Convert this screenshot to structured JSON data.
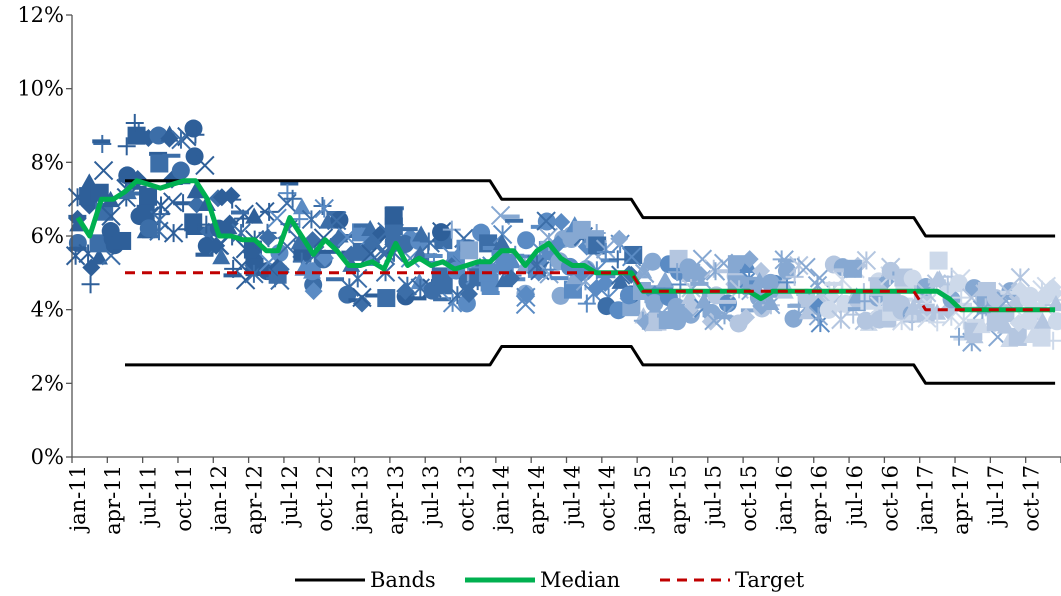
{
  "chart_data": {
    "type": "scatter",
    "title": "",
    "xlabel": "",
    "ylabel": "",
    "ylim": [
      0,
      12
    ],
    "y_ticks": [
      "0%",
      "2%",
      "4%",
      "6%",
      "8%",
      "10%",
      "12%"
    ],
    "x_ticks": [
      "jan-11",
      "apr-11",
      "jul-11",
      "oct-11",
      "jan-12",
      "apr-12",
      "jul-12",
      "oct-12",
      "jan-13",
      "apr-13",
      "jul-13",
      "oct-13",
      "jan-14",
      "apr-14",
      "jul-14",
      "oct-14",
      "jan-15",
      "apr-15",
      "jul-15",
      "oct-15",
      "jan-16",
      "apr-16",
      "jul-16",
      "oct-16",
      "jan-17",
      "apr-17",
      "jul-17",
      "oct-17"
    ],
    "months": [
      "2011-01",
      "2011-02",
      "2011-03",
      "2011-04",
      "2011-05",
      "2011-06",
      "2011-07",
      "2011-08",
      "2011-09",
      "2011-10",
      "2011-11",
      "2011-12",
      "2012-01",
      "2012-02",
      "2012-03",
      "2012-04",
      "2012-05",
      "2012-06",
      "2012-07",
      "2012-08",
      "2012-09",
      "2012-10",
      "2012-11",
      "2012-12",
      "2013-01",
      "2013-02",
      "2013-03",
      "2013-04",
      "2013-05",
      "2013-06",
      "2013-07",
      "2013-08",
      "2013-09",
      "2013-10",
      "2013-11",
      "2013-12",
      "2014-01",
      "2014-02",
      "2014-03",
      "2014-04",
      "2014-05",
      "2014-06",
      "2014-07",
      "2014-08",
      "2014-09",
      "2014-10",
      "2014-11",
      "2014-12",
      "2015-01",
      "2015-02",
      "2015-03",
      "2015-04",
      "2015-05",
      "2015-06",
      "2015-07",
      "2015-08",
      "2015-09",
      "2015-10",
      "2015-11",
      "2015-12",
      "2016-01",
      "2016-02",
      "2016-03",
      "2016-04",
      "2016-05",
      "2016-06",
      "2016-07",
      "2016-08",
      "2016-09",
      "2016-10",
      "2016-11",
      "2016-12",
      "2017-01",
      "2017-02",
      "2017-03",
      "2017-04",
      "2017-05",
      "2017-06",
      "2017-07",
      "2017-08",
      "2017-09",
      "2017-10",
      "2017-11",
      "2017-12"
    ],
    "series": [
      {
        "name": "Bands",
        "color": "#000000",
        "style": "solid",
        "segments": [
          {
            "values": [
              null,
              null,
              null,
              null,
              7.5,
              7.5,
              7.5,
              7.5,
              7.5,
              7.5,
              7.5,
              7.5,
              7.5,
              7.5,
              7.5,
              7.5,
              7.5,
              7.5,
              7.5,
              7.5,
              7.5,
              7.5,
              7.5,
              7.5,
              7.5,
              7.5,
              7.5,
              7.5,
              7.5,
              7.5,
              7.5,
              7.5,
              7.5,
              7.5,
              7.5,
              7.5,
              7,
              7,
              7,
              7,
              7,
              7,
              7,
              7,
              7,
              7,
              7,
              7,
              6.5,
              6.5,
              6.5,
              6.5,
              6.5,
              6.5,
              6.5,
              6.5,
              6.5,
              6.5,
              6.5,
              6.5,
              6.5,
              6.5,
              6.5,
              6.5,
              6.5,
              6.5,
              6.5,
              6.5,
              6.5,
              6.5,
              6.5,
              6.5,
              6,
              6,
              6,
              6,
              6,
              6,
              6,
              6,
              6,
              6,
              6,
              6
            ]
          },
          {
            "values": [
              null,
              null,
              null,
              null,
              2.5,
              2.5,
              2.5,
              2.5,
              2.5,
              2.5,
              2.5,
              2.5,
              2.5,
              2.5,
              2.5,
              2.5,
              2.5,
              2.5,
              2.5,
              2.5,
              2.5,
              2.5,
              2.5,
              2.5,
              2.5,
              2.5,
              2.5,
              2.5,
              2.5,
              2.5,
              2.5,
              2.5,
              2.5,
              2.5,
              2.5,
              2.5,
              3,
              3,
              3,
              3,
              3,
              3,
              3,
              3,
              3,
              3,
              3,
              3,
              2.5,
              2.5,
              2.5,
              2.5,
              2.5,
              2.5,
              2.5,
              2.5,
              2.5,
              2.5,
              2.5,
              2.5,
              2.5,
              2.5,
              2.5,
              2.5,
              2.5,
              2.5,
              2.5,
              2.5,
              2.5,
              2.5,
              2.5,
              2.5,
              2,
              2,
              2,
              2,
              2,
              2,
              2,
              2,
              2,
              2,
              2,
              2
            ]
          }
        ]
      },
      {
        "name": "Median",
        "color": "#00b050",
        "style": "solid",
        "values": [
          6.5,
          6,
          7,
          7,
          7.2,
          7.5,
          7.4,
          7.3,
          7.4,
          7.5,
          7.5,
          7,
          6,
          6,
          5.9,
          5.9,
          5.6,
          5.6,
          6.5,
          6,
          5.5,
          5.9,
          5.6,
          5.2,
          5.2,
          5.3,
          5.1,
          5.8,
          5.2,
          5.4,
          5.2,
          5.3,
          5.1,
          5.2,
          5.3,
          5.3,
          5.6,
          5.6,
          5.2,
          5.6,
          5.8,
          5.4,
          5.2,
          5.2,
          5,
          5,
          5,
          5,
          4.5,
          4.5,
          4.5,
          4.5,
          4.5,
          4.5,
          4.5,
          4.5,
          4.5,
          4.5,
          4.3,
          4.5,
          4.5,
          4.5,
          4.5,
          4.5,
          4.5,
          4.5,
          4.5,
          4.5,
          4.5,
          4.5,
          4.5,
          4.5,
          4.5,
          4.5,
          4.3,
          4,
          4,
          4,
          4,
          4,
          4,
          4,
          4,
          4
        ]
      },
      {
        "name": "Target",
        "color": "#c00000",
        "style": "dashed",
        "values": [
          null,
          null,
          null,
          null,
          5,
          5,
          5,
          5,
          5,
          5,
          5,
          5,
          5,
          5,
          5,
          5,
          5,
          5,
          5,
          5,
          5,
          5,
          5,
          5,
          5,
          5,
          5,
          5,
          5,
          5,
          5,
          5,
          5,
          5,
          5,
          5,
          5,
          5,
          5,
          5,
          5,
          5,
          5,
          5,
          5,
          5,
          5,
          5,
          4.5,
          4.5,
          4.5,
          4.5,
          4.5,
          4.5,
          4.5,
          4.5,
          4.5,
          4.5,
          4.5,
          4.5,
          4.5,
          4.5,
          4.5,
          4.5,
          4.5,
          4.5,
          4.5,
          4.5,
          4.5,
          4.5,
          4.5,
          4.5,
          4,
          4,
          4,
          4,
          4,
          4,
          4,
          4,
          4,
          4,
          4,
          4
        ]
      }
    ],
    "forecast_marker_colors": [
      "#2e5f99",
      "#3c6ea8",
      "#5a8bc4",
      "#86a8d2",
      "#b4c6e0",
      "#cdd9ea"
    ],
    "forecast_marker_shapes": [
      "circle",
      "diamond",
      "square",
      "triangle",
      "dash",
      "plus",
      "x",
      "asterisk"
    ],
    "legend": {
      "position": "bottom",
      "entries": [
        {
          "label": "Bands",
          "color": "#000000",
          "style": "solid"
        },
        {
          "label": "Median",
          "color": "#00b050",
          "style": "solid"
        },
        {
          "label": "Target",
          "color": "#c00000",
          "style": "dashed"
        }
      ]
    }
  }
}
